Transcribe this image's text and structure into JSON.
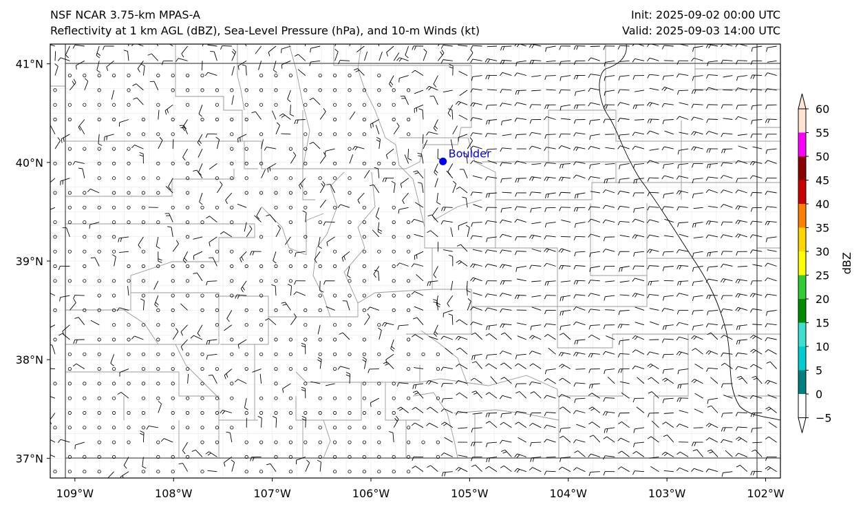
{
  "titles": {
    "left_line1": "NSF NCAR 3.75-km MPAS-A",
    "left_line2": "Reflectivity at 1 km AGL (dBZ), Sea-Level Pressure (hPa), and 10-m Winds (kt)",
    "right_line1": "Init: 2025-09-02 00:00 UTC",
    "right_line2": "Valid: 2025-09-03 14:00 UTC"
  },
  "map": {
    "lon_range": [
      -109.25,
      -101.85
    ],
    "lat_range": [
      36.8,
      41.2
    ],
    "lon_ticks": [
      {
        "value": -109,
        "label": "109°W"
      },
      {
        "value": -108,
        "label": "108°W"
      },
      {
        "value": -107,
        "label": "107°W"
      },
      {
        "value": -106,
        "label": "106°W"
      },
      {
        "value": -105,
        "label": "105°W"
      },
      {
        "value": -104,
        "label": "104°W"
      },
      {
        "value": -103,
        "label": "103°W"
      },
      {
        "value": -102,
        "label": "102°W"
      }
    ],
    "lat_ticks": [
      {
        "value": 41,
        "label": "41°N"
      },
      {
        "value": 40,
        "label": "40°N"
      },
      {
        "value": 39,
        "label": "39°N"
      },
      {
        "value": 38,
        "label": "38°N"
      },
      {
        "value": 37,
        "label": "37°N"
      }
    ],
    "city": {
      "name": "Boulder",
      "lon": -105.27,
      "lat": 40.01,
      "color": "#0000ee"
    }
  },
  "colorbar": {
    "label": "dBZ",
    "ticks": [
      "60",
      "55",
      "50",
      "45",
      "40",
      "35",
      "30",
      "25",
      "20",
      "15",
      "10",
      "5",
      "0",
      "−5"
    ],
    "colors_top_to_bottom": [
      "#ffe4d4",
      "#ff00ff",
      "#8b0000",
      "#cc0000",
      "#ff7f00",
      "#ffd700",
      "#ffff00",
      "#32cd32",
      "#008b00",
      "#40e0d0",
      "#00ced1",
      "#008080",
      "#ffffff"
    ]
  }
}
